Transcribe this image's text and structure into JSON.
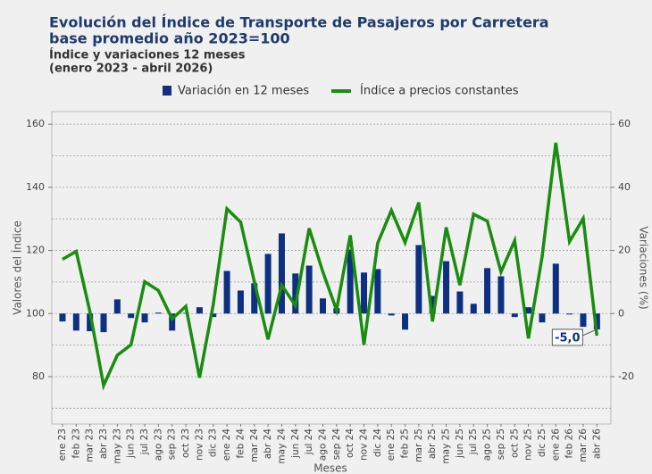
{
  "chart_data": {
    "type": "bar-line",
    "title": "Evolución del Índice de Transporte de Pasajeros por Carretera",
    "title2": "base promedio año 2023=100",
    "subtitle": "Índice y variaciones 12 meses",
    "subtitle2": "(enero 2023 - abril 2026)",
    "xlabel": "Meses",
    "ylabel": "Valores del Índice",
    "y2label": "Variaciones (%)",
    "categories": [
      "ene 23",
      "feb 23",
      "mar 23",
      "abr 23",
      "may 23",
      "jun 23",
      "jul 23",
      "ago 23",
      "sep 23",
      "oct 23",
      "nov 23",
      "dic 23",
      "ene 24",
      "feb 24",
      "mar 24",
      "abr 24",
      "may 24",
      "jun 24",
      "jul 24",
      "ago 24",
      "sep 24",
      "oct 24",
      "nov 24",
      "dic 24",
      "ene 25",
      "feb 25",
      "mar 25",
      "abr 25",
      "may 25",
      "jun 25",
      "jul 25",
      "ago 25",
      "sep 25",
      "oct 25",
      "nov 25",
      "dic 25",
      "ene 26",
      "feb 26",
      "mar 26",
      "abr 26"
    ],
    "series": [
      {
        "name": "Variación en 12 meses",
        "type": "bar",
        "axis": "y2",
        "color": "#0d3080",
        "values": [
          -2.5,
          -5.4,
          -5.6,
          -5.9,
          4.5,
          -1.4,
          -2.8,
          0.3,
          -5.4,
          0.2,
          2.0,
          -1.1,
          13.5,
          7.3,
          9.6,
          18.9,
          25.4,
          12.7,
          15.2,
          4.8,
          1.7,
          20.3,
          13.0,
          14.1,
          -0.6,
          -5.1,
          21.7,
          5.6,
          16.6,
          7.0,
          3.1,
          14.4,
          11.8,
          -1.1,
          2.0,
          -2.8,
          15.8,
          -0.3,
          -4.2,
          -5.0
        ]
      },
      {
        "name": "Índice a precios constantes",
        "type": "line",
        "axis": "y",
        "color": "#1a8c10",
        "values": [
          117.2,
          119.7,
          100.6,
          77.2,
          86.8,
          90.1,
          110.1,
          107.3,
          98.3,
          102.3,
          79.7,
          102.8,
          133.2,
          129.0,
          110.1,
          91.8,
          109.0,
          102.5,
          127.0,
          113.2,
          101.1,
          124.8,
          90.1,
          122.3,
          132.7,
          122.5,
          135.2,
          97.5,
          127.3,
          109.0,
          131.5,
          129.3,
          113.2,
          123.1,
          92.1,
          118.0,
          154.1,
          122.8,
          130.1,
          93.0
        ]
      }
    ],
    "last_value_label": "-5,0",
    "ylim": [
      65,
      164
    ],
    "yticks": [
      80,
      100,
      120,
      140,
      160
    ],
    "y2lim": [
      -35,
      64
    ],
    "y2ticks": [
      -20,
      0,
      20,
      40,
      60
    ],
    "y2minorticks": [
      -30,
      -10,
      10,
      30,
      50
    ],
    "grid": true
  }
}
